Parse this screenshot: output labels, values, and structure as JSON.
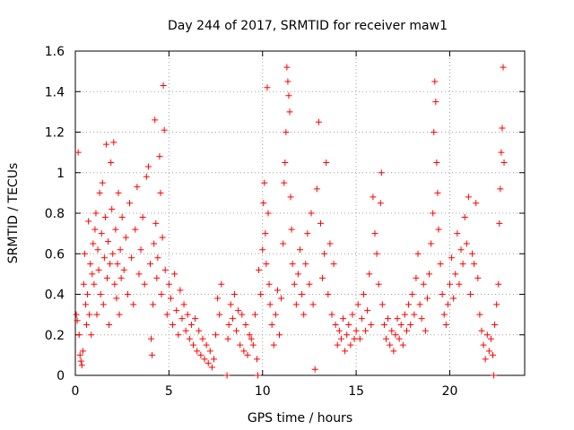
{
  "chart_data": {
    "type": "scatter",
    "title": "Day 244 of 2017, SRMTID for receiver maw1",
    "xlabel": "GPS time / hours",
    "ylabel": "SRMTID / TECUs",
    "xlim": [
      0,
      24
    ],
    "ylim": [
      0,
      1.6
    ],
    "xticks": [
      0,
      5,
      10,
      15,
      20
    ],
    "xtick_labels": [
      "0",
      "5",
      "10",
      "15",
      "20"
    ],
    "yticks": [
      0,
      0.2,
      0.4,
      0.6,
      0.8,
      1,
      1.2,
      1.4,
      1.6
    ],
    "ytick_labels": [
      "0",
      "0.2",
      "0.4",
      "0.6",
      "0.8",
      "1",
      "1.2",
      "1.4",
      "1.6"
    ],
    "grid": true,
    "marker": "+",
    "color": "#ff0000",
    "series": [
      {
        "name": "SRMTID",
        "points": [
          [
            0.05,
            0.3
          ],
          [
            0.1,
            0.27
          ],
          [
            0.15,
            1.1
          ],
          [
            0.2,
            0.2
          ],
          [
            0.25,
            0.1
          ],
          [
            0.3,
            0.07
          ],
          [
            0.35,
            0.05
          ],
          [
            0.4,
            0.12
          ],
          [
            0.45,
            0.45
          ],
          [
            0.5,
            0.6
          ],
          [
            0.55,
            0.35
          ],
          [
            0.6,
            0.25
          ],
          [
            0.65,
            0.4
          ],
          [
            0.7,
            0.76
          ],
          [
            0.75,
            0.3
          ],
          [
            0.8,
            0.55
          ],
          [
            0.85,
            0.2
          ],
          [
            0.9,
            0.5
          ],
          [
            0.95,
            0.65
          ],
          [
            1.0,
            0.45
          ],
          [
            1.05,
            0.72
          ],
          [
            1.1,
            0.8
          ],
          [
            1.15,
            0.3
          ],
          [
            1.2,
            0.62
          ],
          [
            1.25,
            0.52
          ],
          [
            1.3,
            0.9
          ],
          [
            1.35,
            0.4
          ],
          [
            1.4,
            0.7
          ],
          [
            1.45,
            0.95
          ],
          [
            1.5,
            0.35
          ],
          [
            1.55,
            0.58
          ],
          [
            1.6,
            0.78
          ],
          [
            1.65,
            1.14
          ],
          [
            1.7,
            0.48
          ],
          [
            1.75,
            0.66
          ],
          [
            1.8,
            0.25
          ],
          [
            1.85,
            0.55
          ],
          [
            1.9,
            1.05
          ],
          [
            1.95,
            0.82
          ],
          [
            2.0,
            0.6
          ],
          [
            2.05,
            1.15
          ],
          [
            2.1,
            0.45
          ],
          [
            2.15,
            0.72
          ],
          [
            2.2,
            0.38
          ],
          [
            2.25,
            0.55
          ],
          [
            2.3,
            0.9
          ],
          [
            2.35,
            0.3
          ],
          [
            2.4,
            0.62
          ],
          [
            2.45,
            0.48
          ],
          [
            2.5,
            0.78
          ],
          [
            2.6,
            0.52
          ],
          [
            2.7,
            0.68
          ],
          [
            2.8,
            0.4
          ],
          [
            2.9,
            0.85
          ],
          [
            3.0,
            0.58
          ],
          [
            3.1,
            0.35
          ],
          [
            3.2,
            0.72
          ],
          [
            3.3,
            0.93
          ],
          [
            3.4,
            0.5
          ],
          [
            3.5,
            0.62
          ],
          [
            3.6,
            0.78
          ],
          [
            3.7,
            0.45
          ],
          [
            3.8,
            0.98
          ],
          [
            3.9,
            1.03
          ],
          [
            4.0,
            0.55
          ],
          [
            4.05,
            0.18
          ],
          [
            4.1,
            0.1
          ],
          [
            4.15,
            0.35
          ],
          [
            4.2,
            0.65
          ],
          [
            4.25,
            1.26
          ],
          [
            4.3,
            0.75
          ],
          [
            4.35,
            0.48
          ],
          [
            4.4,
            0.58
          ],
          [
            4.5,
            1.08
          ],
          [
            4.55,
            0.9
          ],
          [
            4.6,
            0.4
          ],
          [
            4.65,
            0.68
          ],
          [
            4.7,
            1.43
          ],
          [
            4.75,
            1.21
          ],
          [
            4.8,
            0.52
          ],
          [
            4.9,
            0.3
          ],
          [
            5.0,
            0.45
          ],
          [
            5.1,
            0.38
          ],
          [
            5.2,
            0.25
          ],
          [
            5.3,
            0.5
          ],
          [
            5.4,
            0.32
          ],
          [
            5.5,
            0.2
          ],
          [
            5.6,
            0.42
          ],
          [
            5.7,
            0.28
          ],
          [
            5.8,
            0.35
          ],
          [
            5.9,
            0.22
          ],
          [
            6.0,
            0.3
          ],
          [
            6.1,
            0.18
          ],
          [
            6.2,
            0.25
          ],
          [
            6.3,
            0.15
          ],
          [
            6.4,
            0.28
          ],
          [
            6.5,
            0.12
          ],
          [
            6.6,
            0.22
          ],
          [
            6.7,
            0.1
          ],
          [
            6.8,
            0.18
          ],
          [
            6.9,
            0.08
          ],
          [
            7.0,
            0.15
          ],
          [
            7.1,
            0.06
          ],
          [
            7.2,
            0.12
          ],
          [
            7.3,
            0.04
          ],
          [
            7.4,
            0.08
          ],
          [
            7.5,
            0.2
          ],
          [
            7.6,
            0.38
          ],
          [
            7.7,
            0.3
          ],
          [
            7.8,
            0.45
          ],
          [
            8.1,
            0.0
          ],
          [
            8.15,
            0.18
          ],
          [
            8.2,
            0.25
          ],
          [
            8.3,
            0.35
          ],
          [
            8.4,
            0.28
          ],
          [
            8.5,
            0.4
          ],
          [
            8.6,
            0.22
          ],
          [
            8.7,
            0.32
          ],
          [
            8.8,
            0.15
          ],
          [
            8.9,
            0.3
          ],
          [
            9.0,
            0.12
          ],
          [
            9.1,
            0.25
          ],
          [
            9.2,
            0.1
          ],
          [
            9.3,
            0.2
          ],
          [
            9.4,
            0.18
          ],
          [
            9.5,
            0.15
          ],
          [
            9.6,
            0.3
          ],
          [
            9.7,
            0.08
          ],
          [
            9.75,
            0.0
          ],
          [
            9.8,
            0.52
          ],
          [
            9.9,
            0.4
          ],
          [
            10.0,
            0.62
          ],
          [
            10.05,
            0.85
          ],
          [
            10.1,
            0.95
          ],
          [
            10.15,
            0.7
          ],
          [
            10.2,
            0.55
          ],
          [
            10.25,
            1.42
          ],
          [
            10.3,
            0.8
          ],
          [
            10.35,
            0.45
          ],
          [
            10.4,
            0.35
          ],
          [
            10.5,
            0.25
          ],
          [
            10.6,
            0.15
          ],
          [
            10.7,
            0.3
          ],
          [
            10.8,
            0.42
          ],
          [
            10.9,
            0.2
          ],
          [
            11.0,
            0.38
          ],
          [
            11.1,
            0.65
          ],
          [
            11.15,
            0.95
          ],
          [
            11.2,
            1.05
          ],
          [
            11.25,
            1.2
          ],
          [
            11.3,
            1.52
          ],
          [
            11.35,
            1.45
          ],
          [
            11.4,
            1.38
          ],
          [
            11.45,
            1.3
          ],
          [
            11.5,
            0.88
          ],
          [
            11.55,
            0.72
          ],
          [
            11.6,
            0.55
          ],
          [
            11.7,
            0.45
          ],
          [
            11.8,
            0.35
          ],
          [
            11.9,
            0.5
          ],
          [
            12.0,
            0.62
          ],
          [
            12.1,
            0.4
          ],
          [
            12.2,
            0.3
          ],
          [
            12.3,
            0.55
          ],
          [
            12.4,
            0.7
          ],
          [
            12.5,
            0.45
          ],
          [
            12.6,
            0.8
          ],
          [
            12.7,
            0.35
          ],
          [
            12.8,
            0.03
          ],
          [
            12.9,
            0.92
          ],
          [
            13.0,
            1.25
          ],
          [
            13.1,
            0.75
          ],
          [
            13.2,
            0.48
          ],
          [
            13.3,
            0.6
          ],
          [
            13.4,
            1.05
          ],
          [
            13.5,
            0.4
          ],
          [
            13.6,
            0.65
          ],
          [
            13.7,
            0.3
          ],
          [
            13.8,
            0.55
          ],
          [
            13.9,
            0.25
          ],
          [
            14.0,
            0.15
          ],
          [
            14.1,
            0.22
          ],
          [
            14.2,
            0.18
          ],
          [
            14.3,
            0.28
          ],
          [
            14.4,
            0.12
          ],
          [
            14.5,
            0.2
          ],
          [
            14.6,
            0.25
          ],
          [
            14.7,
            0.15
          ],
          [
            14.8,
            0.3
          ],
          [
            14.9,
            0.18
          ],
          [
            15.0,
            0.22
          ],
          [
            15.1,
            0.35
          ],
          [
            15.2,
            0.18
          ],
          [
            15.3,
            0.28
          ],
          [
            15.4,
            0.4
          ],
          [
            15.5,
            0.22
          ],
          [
            15.6,
            0.32
          ],
          [
            15.7,
            0.5
          ],
          [
            15.8,
            0.25
          ],
          [
            15.9,
            0.88
          ],
          [
            16.0,
            0.7
          ],
          [
            16.1,
            0.6
          ],
          [
            16.2,
            0.45
          ],
          [
            16.3,
            0.85
          ],
          [
            16.35,
            1.0
          ],
          [
            16.4,
            0.35
          ],
          [
            16.5,
            0.25
          ],
          [
            16.6,
            0.18
          ],
          [
            16.7,
            0.28
          ],
          [
            16.8,
            0.15
          ],
          [
            16.9,
            0.22
          ],
          [
            17.0,
            0.12
          ],
          [
            17.1,
            0.2
          ],
          [
            17.2,
            0.28
          ],
          [
            17.3,
            0.18
          ],
          [
            17.4,
            0.25
          ],
          [
            17.5,
            0.15
          ],
          [
            17.6,
            0.3
          ],
          [
            17.7,
            0.22
          ],
          [
            17.8,
            0.35
          ],
          [
            17.9,
            0.25
          ],
          [
            18.0,
            0.4
          ],
          [
            18.1,
            0.3
          ],
          [
            18.2,
            0.48
          ],
          [
            18.3,
            0.6
          ],
          [
            18.4,
            0.35
          ],
          [
            18.5,
            0.28
          ],
          [
            18.6,
            0.45
          ],
          [
            18.7,
            0.22
          ],
          [
            18.8,
            0.38
          ],
          [
            18.9,
            0.5
          ],
          [
            19.0,
            0.65
          ],
          [
            19.1,
            0.8
          ],
          [
            19.15,
            1.2
          ],
          [
            19.2,
            1.45
          ],
          [
            19.25,
            1.35
          ],
          [
            19.3,
            1.05
          ],
          [
            19.35,
            0.9
          ],
          [
            19.4,
            0.72
          ],
          [
            19.5,
            0.55
          ],
          [
            19.6,
            0.4
          ],
          [
            19.7,
            0.3
          ],
          [
            19.8,
            0.25
          ],
          [
            19.9,
            0.35
          ],
          [
            20.0,
            0.45
          ],
          [
            20.1,
            0.58
          ],
          [
            20.2,
            0.38
          ],
          [
            20.3,
            0.5
          ],
          [
            20.4,
            0.7
          ],
          [
            20.5,
            0.45
          ],
          [
            20.6,
            0.62
          ],
          [
            20.7,
            0.55
          ],
          [
            20.8,
            0.78
          ],
          [
            20.9,
            0.65
          ],
          [
            21.0,
            0.88
          ],
          [
            21.1,
            0.4
          ],
          [
            21.2,
            0.6
          ],
          [
            21.3,
            0.55
          ],
          [
            21.4,
            0.85
          ],
          [
            21.5,
            0.48
          ],
          [
            21.6,
            0.3
          ],
          [
            21.7,
            0.22
          ],
          [
            21.8,
            0.15
          ],
          [
            21.9,
            0.08
          ],
          [
            22.0,
            0.2
          ],
          [
            22.1,
            0.12
          ],
          [
            22.2,
            0.18
          ],
          [
            22.3,
            0.1
          ],
          [
            22.35,
            0.0
          ],
          [
            22.4,
            0.25
          ],
          [
            22.5,
            0.35
          ],
          [
            22.6,
            0.45
          ],
          [
            22.65,
            0.75
          ],
          [
            22.7,
            0.92
          ],
          [
            22.75,
            1.1
          ],
          [
            22.8,
            1.22
          ],
          [
            22.85,
            1.52
          ],
          [
            22.9,
            1.05
          ]
        ]
      }
    ]
  }
}
